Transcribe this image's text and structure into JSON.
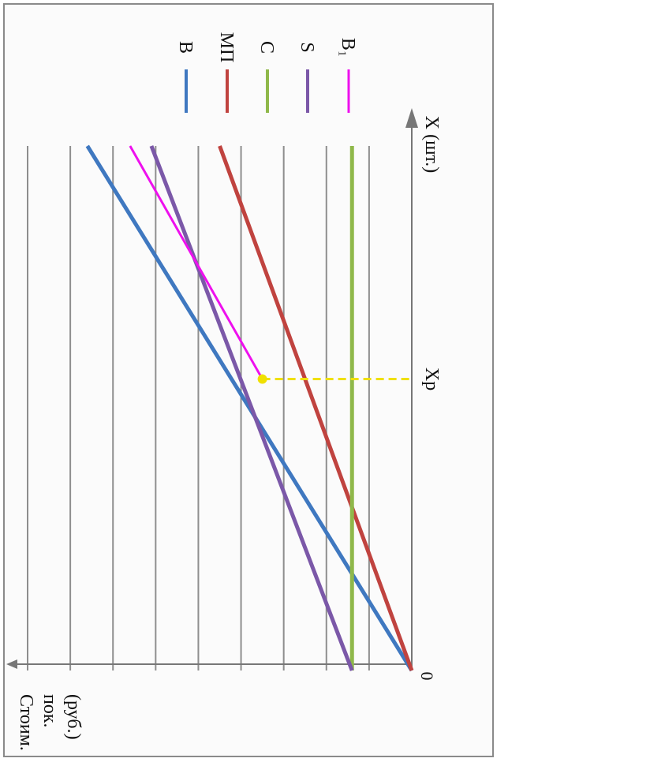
{
  "chart_data": {
    "type": "line",
    "orientation": "rotated-90-clockwise",
    "xlabel": "X (шт.)",
    "ylabel_lines": [
      "Стоим.",
      "пок.",
      "(руб.)"
    ],
    "origin_label": "0",
    "marker": {
      "label": "Xp",
      "x": 5,
      "y": 3.5,
      "color": "#f0e000"
    },
    "xlim": [
      0,
      9
    ],
    "ylim": [
      0,
      9
    ],
    "grid": true,
    "legend_position": "top-right",
    "series": [
      {
        "name": "B",
        "color": "#3f78c0",
        "x": [
          0,
          9
        ],
        "y": [
          0,
          7.6
        ]
      },
      {
        "name": "МП",
        "color": "#c0433f",
        "x": [
          0,
          9
        ],
        "y": [
          0,
          4.5
        ]
      },
      {
        "name": "C",
        "color": "#8fb84a",
        "x": [
          0,
          9
        ],
        "y": [
          1.4,
          1.4
        ]
      },
      {
        "name": "S",
        "color": "#7b58a8",
        "x": [
          0,
          9
        ],
        "y": [
          1.4,
          6.1
        ]
      },
      {
        "name": "B₁",
        "color": "#ee10ee",
        "x": [
          5,
          9
        ],
        "y": [
          3.5,
          6.6
        ]
      }
    ]
  }
}
